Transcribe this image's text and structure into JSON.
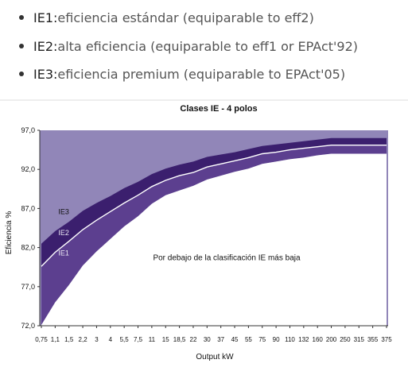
{
  "bullets": [
    {
      "label": "IE1",
      "sep": ":",
      "text": " eficiencia estándar (equiparable to eff2)"
    },
    {
      "label": "IE2",
      "sep": ":",
      "text": " alta eficiencia (equiparable to eff1 or EPAct'92)"
    },
    {
      "label": "IE3",
      "sep": ":",
      "text": " eficiencia premium (equiparable to EPAct'05)"
    }
  ],
  "colors": {
    "below": "#ffffff",
    "ie1": "#5c3f8f",
    "ie2": "#ffffff",
    "ie3": "#3b1f6e",
    "above": "#9186b8",
    "label_light": "#ece8f4"
  },
  "chart_data": {
    "type": "area",
    "title": "Clases IE - 4 polos",
    "xlabel": "Output kW",
    "ylabel": "Eficiencia %",
    "ylim": [
      72.0,
      97.0
    ],
    "yticks": [
      "97,0",
      "92,0",
      "87,0",
      "82,0",
      "77,0",
      "72,0"
    ],
    "ytick_values": [
      97.0,
      92.0,
      87.0,
      82.0,
      77.0,
      72.0
    ],
    "categories": [
      "0,75",
      "1,1",
      "1,5",
      "2,2",
      "3",
      "4",
      "5,5",
      "7,5",
      "11",
      "15",
      "18,5",
      "22",
      "30",
      "37",
      "45",
      "55",
      "75",
      "90",
      "110",
      "132",
      "160",
      "200",
      "250",
      "315",
      "355",
      "375"
    ],
    "series": [
      {
        "name": "IE1",
        "values": [
          72.1,
          75.0,
          77.2,
          79.7,
          81.5,
          83.1,
          84.7,
          86.0,
          87.6,
          88.7,
          89.3,
          89.9,
          90.7,
          91.2,
          91.7,
          92.1,
          92.7,
          93.0,
          93.3,
          93.5,
          93.8,
          94.0,
          94.0,
          94.0,
          94.0,
          94.0
        ]
      },
      {
        "name": "IE2",
        "values": [
          79.6,
          81.4,
          82.8,
          84.3,
          85.5,
          86.6,
          87.7,
          88.7,
          89.8,
          90.6,
          91.2,
          91.6,
          92.3,
          92.7,
          93.1,
          93.5,
          94.0,
          94.2,
          94.5,
          94.7,
          94.9,
          95.1,
          95.1,
          95.1,
          95.1,
          95.1
        ]
      },
      {
        "name": "IE3",
        "values": [
          82.5,
          84.1,
          85.3,
          86.7,
          87.7,
          88.6,
          89.6,
          90.4,
          91.4,
          92.1,
          92.6,
          93.0,
          93.6,
          93.9,
          94.2,
          94.6,
          95.0,
          95.2,
          95.4,
          95.6,
          95.8,
          96.0,
          96.0,
          96.0,
          96.0,
          96.0
        ]
      }
    ],
    "region_labels": {
      "ie3": "IE3",
      "ie2": "IE2",
      "ie1": "IE1",
      "below": "Por debajo de la clasificación IE más baja"
    },
    "grid": false,
    "legend": "none"
  }
}
